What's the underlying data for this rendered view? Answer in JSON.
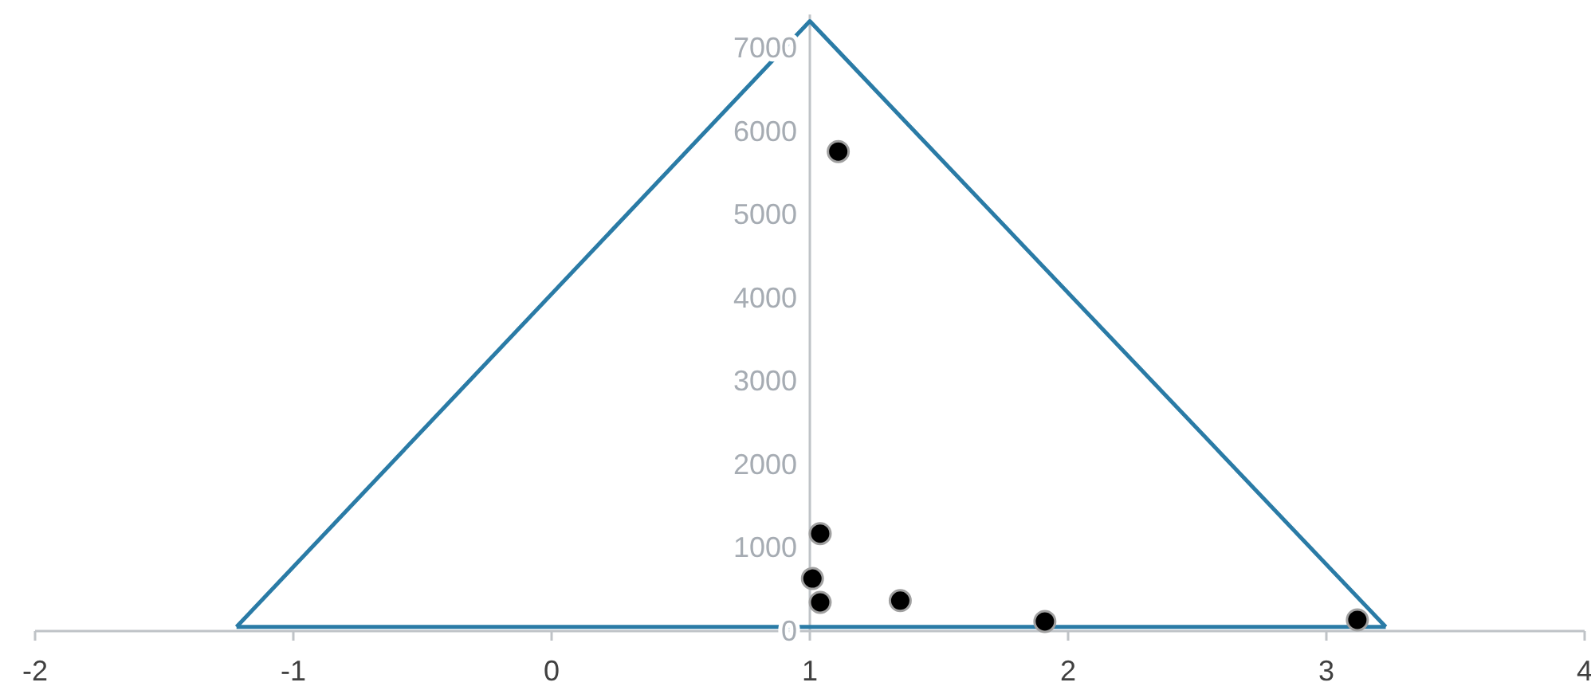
{
  "chart_data": {
    "type": "scatter",
    "xlim": [
      -2,
      4
    ],
    "xticks": [
      -2,
      -1,
      0,
      1,
      2,
      3,
      4
    ],
    "ylim": [
      0,
      7400
    ],
    "yticks": [
      0,
      1000,
      2000,
      3000,
      4000,
      5000,
      6000,
      7000
    ],
    "grid": false,
    "legend": false,
    "series": [
      {
        "type": "line",
        "color": "#2a7ba6",
        "marker": "none",
        "line_style": "solid",
        "x": [
          -1.22,
          1,
          3.23
        ],
        "values": [
          50,
          7320,
          50
        ]
      },
      {
        "type": "line",
        "color": "#2a7ba6",
        "marker": "none",
        "line_style": "solid",
        "x": [
          -1.22,
          3.23
        ],
        "values": [
          50,
          50
        ]
      },
      {
        "color": "#000000",
        "marker": "circle",
        "x": [
          1.11,
          1.04,
          1.01,
          1.04,
          1.35,
          1.91,
          3.12
        ],
        "values": [
          5755,
          1170,
          630,
          345,
          365,
          115,
          135
        ]
      }
    ]
  }
}
